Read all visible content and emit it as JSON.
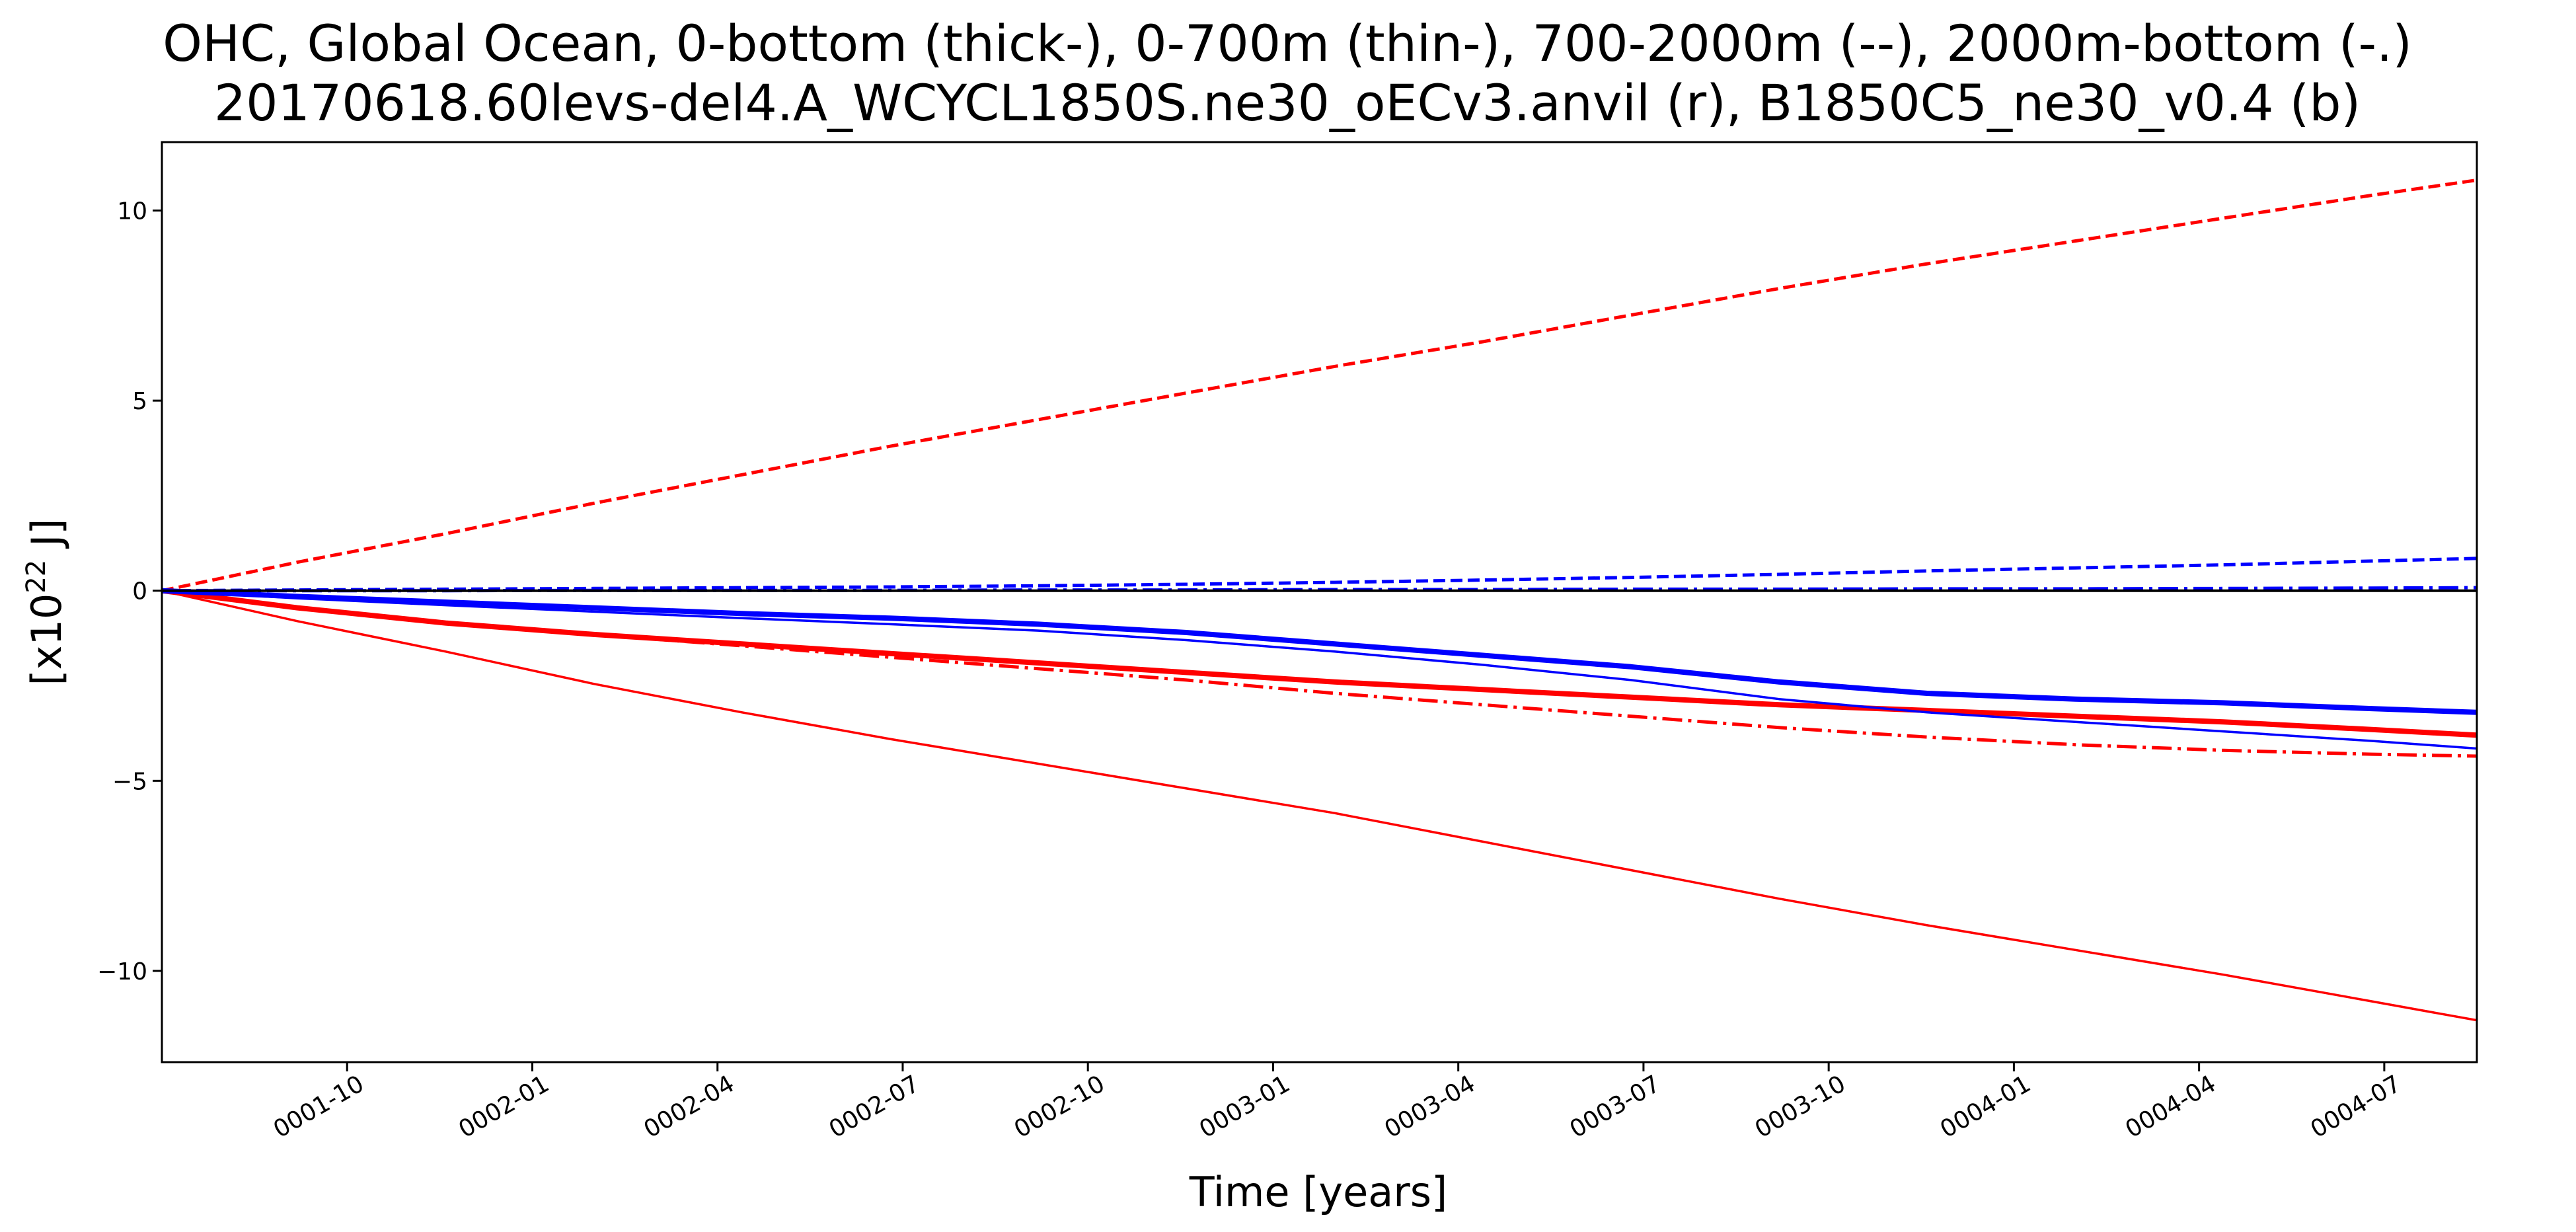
{
  "chart_data": {
    "type": "line",
    "title_lines": [
      "OHC, Global Ocean, 0-bottom (thick-), 0-700m (thin-), 700-2000m (--), 2000m-bottom (-.)",
      "20170618.60levs-del4.A_WCYCL1850S.ne30_oECv3.anvil (r), B1850C5_ne30_v0.4 (b)"
    ],
    "xlabel": "Time [years]",
    "ylabel": "[x10",
    "ylabel_sup": "22",
    "ylabel_suffix": " J]",
    "xlim": [
      1.417,
      4.542
    ],
    "ylim": [
      -12.4,
      11.8
    ],
    "grid": false,
    "legend": "none",
    "x_ticks": [
      {
        "value": 1.667,
        "label": "0001-10"
      },
      {
        "value": 1.917,
        "label": "0002-01"
      },
      {
        "value": 2.167,
        "label": "0002-04"
      },
      {
        "value": 2.417,
        "label": "0002-07"
      },
      {
        "value": 2.667,
        "label": "0002-10"
      },
      {
        "value": 2.917,
        "label": "0003-01"
      },
      {
        "value": 3.167,
        "label": "0003-04"
      },
      {
        "value": 3.417,
        "label": "0003-07"
      },
      {
        "value": 3.667,
        "label": "0003-10"
      },
      {
        "value": 3.917,
        "label": "0004-01"
      },
      {
        "value": 4.167,
        "label": "0004-04"
      },
      {
        "value": 4.417,
        "label": "0004-07"
      }
    ],
    "y_ticks": [
      {
        "value": 10,
        "label": "10"
      },
      {
        "value": 5,
        "label": "5"
      },
      {
        "value": 0,
        "label": "0"
      },
      {
        "value": -5,
        "label": "−5"
      },
      {
        "value": -10,
        "label": "−10"
      }
    ],
    "series": [
      {
        "color": "#ff0000",
        "style": "solid",
        "width": 8,
        "x": [
          1.417,
          1.6,
          1.8,
          2.0,
          2.2,
          2.4,
          2.6,
          2.8,
          3.0,
          3.2,
          3.4,
          3.6,
          3.8,
          4.0,
          4.2,
          4.4,
          4.542
        ],
        "y": [
          0,
          -0.45,
          -0.85,
          -1.15,
          -1.4,
          -1.65,
          -1.9,
          -2.15,
          -2.4,
          -2.6,
          -2.8,
          -3.0,
          -3.15,
          -3.3,
          -3.45,
          -3.65,
          -3.8
        ]
      },
      {
        "color": "#ff0000",
        "style": "thin",
        "width": 3.5,
        "x": [
          1.417,
          1.6,
          1.8,
          2.0,
          2.2,
          2.4,
          2.6,
          2.8,
          3.0,
          3.2,
          3.4,
          3.6,
          3.8,
          4.0,
          4.2,
          4.4,
          4.542
        ],
        "y": [
          0,
          -0.8,
          -1.6,
          -2.45,
          -3.2,
          -3.9,
          -4.55,
          -5.2,
          -5.85,
          -6.6,
          -7.35,
          -8.1,
          -8.8,
          -9.45,
          -10.1,
          -10.8,
          -11.3
        ]
      },
      {
        "color": "#ff0000",
        "style": "dashed",
        "width": 5,
        "x": [
          1.417,
          1.6,
          1.8,
          2.0,
          2.2,
          2.4,
          2.6,
          2.8,
          3.0,
          3.2,
          3.4,
          3.6,
          3.8,
          4.0,
          4.2,
          4.4,
          4.542
        ],
        "y": [
          0,
          0.75,
          1.5,
          2.3,
          3.05,
          3.8,
          4.5,
          5.2,
          5.9,
          6.55,
          7.25,
          7.95,
          8.6,
          9.2,
          9.8,
          10.4,
          10.8
        ]
      },
      {
        "color": "#ff0000",
        "style": "dashdot",
        "width": 5,
        "x": [
          1.417,
          1.6,
          1.8,
          2.0,
          2.2,
          2.4,
          2.6,
          2.8,
          3.0,
          3.2,
          3.4,
          3.6,
          3.8,
          4.0,
          4.2,
          4.4,
          4.542
        ],
        "y": [
          0,
          -0.45,
          -0.85,
          -1.15,
          -1.45,
          -1.75,
          -2.05,
          -2.35,
          -2.7,
          -3.0,
          -3.3,
          -3.6,
          -3.85,
          -4.05,
          -4.2,
          -4.3,
          -4.35
        ]
      },
      {
        "color": "#0000ff",
        "style": "solid",
        "width": 8,
        "x": [
          1.417,
          1.6,
          1.8,
          2.0,
          2.2,
          2.4,
          2.6,
          2.8,
          3.0,
          3.2,
          3.4,
          3.6,
          3.8,
          4.0,
          4.2,
          4.4,
          4.542
        ],
        "y": [
          0,
          -0.15,
          -0.3,
          -0.45,
          -0.6,
          -0.72,
          -0.88,
          -1.1,
          -1.4,
          -1.7,
          -2.0,
          -2.4,
          -2.7,
          -2.85,
          -2.95,
          -3.1,
          -3.2
        ]
      },
      {
        "color": "#0000ff",
        "style": "thin",
        "width": 3.5,
        "x": [
          1.417,
          1.6,
          1.8,
          2.0,
          2.2,
          2.4,
          2.6,
          2.8,
          3.0,
          3.2,
          3.4,
          3.6,
          3.8,
          4.0,
          4.2,
          4.4,
          4.542
        ],
        "y": [
          0,
          -0.2,
          -0.38,
          -0.55,
          -0.72,
          -0.88,
          -1.05,
          -1.3,
          -1.6,
          -1.95,
          -2.35,
          -2.85,
          -3.2,
          -3.45,
          -3.7,
          -3.95,
          -4.15
        ]
      },
      {
        "color": "#0000ff",
        "style": "dashed",
        "width": 5,
        "x": [
          1.417,
          1.6,
          1.8,
          2.0,
          2.2,
          2.4,
          2.6,
          2.8,
          3.0,
          3.2,
          3.4,
          3.6,
          3.8,
          4.0,
          4.2,
          4.4,
          4.542
        ],
        "y": [
          0,
          0.02,
          0.04,
          0.06,
          0.08,
          0.1,
          0.13,
          0.17,
          0.22,
          0.28,
          0.35,
          0.43,
          0.52,
          0.6,
          0.68,
          0.78,
          0.85
        ]
      },
      {
        "color": "#0000ff",
        "style": "dashdot",
        "width": 5,
        "x": [
          1.417,
          1.6,
          1.8,
          2.0,
          2.2,
          2.4,
          2.6,
          2.8,
          3.0,
          3.2,
          3.4,
          3.6,
          3.8,
          4.0,
          4.2,
          4.4,
          4.542
        ],
        "y": [
          0,
          0.0,
          0.0,
          0.01,
          0.01,
          0.01,
          0.02,
          0.02,
          0.03,
          0.03,
          0.04,
          0.04,
          0.05,
          0.05,
          0.06,
          0.07,
          0.08
        ]
      },
      {
        "color": "#000000",
        "style": "solid",
        "width": 4,
        "x": [
          1.417,
          4.542
        ],
        "y": [
          0,
          0
        ]
      }
    ]
  }
}
